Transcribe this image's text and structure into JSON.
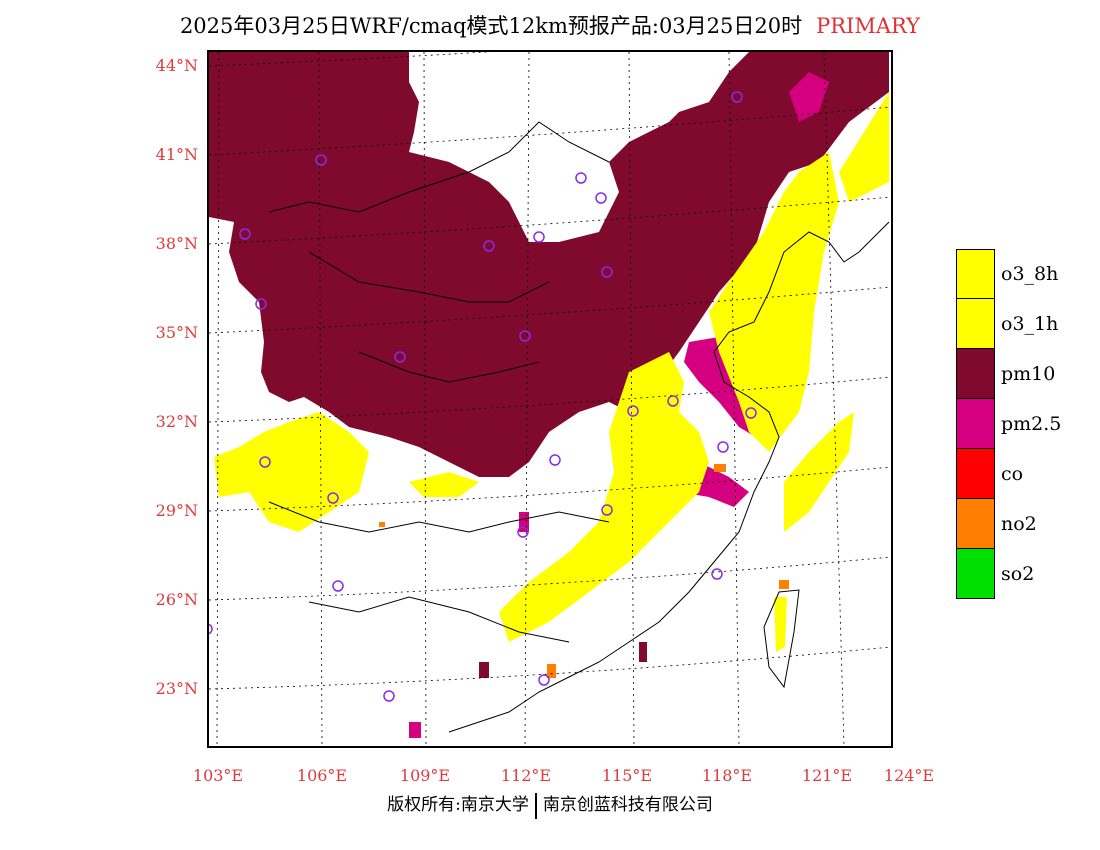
{
  "title": {
    "main": "2025年03月25日WRF/cmaq模式12km预报产品:03月25日20时",
    "tag": "PRIMARY"
  },
  "lat_labels": [
    "44°N",
    "41°N",
    "38°N",
    "35°N",
    "32°N",
    "29°N",
    "26°N",
    "23°N"
  ],
  "lon_labels": [
    "103°E",
    "106°E",
    "109°E",
    "112°E",
    "115°E",
    "118°E",
    "121°E",
    "124°E"
  ],
  "legend": [
    {
      "label": "o3_8h",
      "color": "#ffff00"
    },
    {
      "label": "o3_1h",
      "color": "#ffff00"
    },
    {
      "label": "pm10",
      "color": "#7f0a2e"
    },
    {
      "label": "pm2.5",
      "color": "#d4007f"
    },
    {
      "label": "co",
      "color": "#ff0000"
    },
    {
      "label": "no2",
      "color": "#ff8000"
    },
    {
      "label": "so2",
      "color": "#00e000"
    }
  ],
  "station_marker_color": "#8a2be2",
  "copyright": {
    "left": "版权所有:南京大学",
    "right": "南京创蓝科技有限公司"
  }
}
